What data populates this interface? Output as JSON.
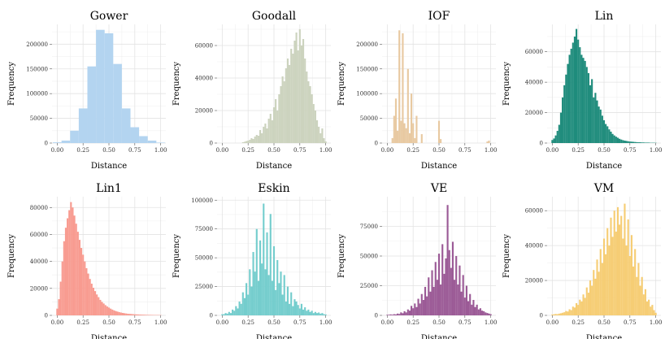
{
  "chart_data": [
    {
      "type": "bar",
      "title": "Gower",
      "xlabel": "Distance",
      "ylabel": "Frequency",
      "color": "#b3d4f0",
      "xlim": [
        -0.05,
        1.05
      ],
      "ylim": [
        0,
        240000
      ],
      "xticks": [
        0,
        0.25,
        0.5,
        0.75,
        1
      ],
      "xtick_labels": [
        "0.00",
        "0.25",
        "0.50",
        "0.75",
        "1.00"
      ],
      "yticks": [
        0,
        50000,
        100000,
        150000,
        200000
      ],
      "ytick_labels": [
        "0",
        "50000",
        "100000",
        "150000",
        "200000"
      ],
      "bin_width": 0.0833,
      "x": [
        0,
        0.0833,
        0.1667,
        0.25,
        0.3333,
        0.4167,
        0.5,
        0.5833,
        0.6667,
        0.75,
        0.8333,
        0.9167,
        1.0
      ],
      "values": [
        1500,
        5000,
        25000,
        70000,
        155000,
        229000,
        222000,
        160000,
        70000,
        32000,
        14000,
        5000,
        1000
      ]
    },
    {
      "type": "bar",
      "title": "Goodall",
      "xlabel": "Distance",
      "ylabel": "Frequency",
      "color": "#ccd3be",
      "xlim": [
        -0.05,
        1.05
      ],
      "ylim": [
        0,
        73000
      ],
      "xticks": [
        0,
        0.25,
        0.5,
        0.75,
        1
      ],
      "xtick_labels": [
        "0.00",
        "0.25",
        "0.50",
        "0.75",
        "1.00"
      ],
      "yticks": [
        0,
        20000,
        40000,
        60000
      ],
      "ytick_labels": [
        "0",
        "20000",
        "40000",
        "60000"
      ],
      "bin_width": 0.0167,
      "x": [
        0.2,
        0.2167,
        0.2333,
        0.25,
        0.2667,
        0.2833,
        0.3,
        0.3167,
        0.3333,
        0.35,
        0.3667,
        0.3833,
        0.4,
        0.4167,
        0.4333,
        0.45,
        0.4667,
        0.4833,
        0.5,
        0.5167,
        0.5333,
        0.55,
        0.5667,
        0.5833,
        0.6,
        0.6167,
        0.6333,
        0.65,
        0.6667,
        0.6833,
        0.7,
        0.7167,
        0.7333,
        0.75,
        0.7667,
        0.7833,
        0.8,
        0.8167,
        0.8333,
        0.85,
        0.8667,
        0.8833,
        0.9,
        0.9167,
        0.9333,
        0.95,
        0.9667,
        0.9833,
        1.0
      ],
      "values": [
        500,
        800,
        1200,
        1500,
        2000,
        3000,
        2500,
        4000,
        5000,
        4500,
        8000,
        6000,
        10000,
        12000,
        9000,
        15000,
        18000,
        14000,
        22000,
        27000,
        20000,
        30000,
        35000,
        41000,
        38000,
        46000,
        52000,
        48000,
        58000,
        55000,
        63000,
        68000,
        57000,
        70000,
        60000,
        64000,
        52000,
        44000,
        38000,
        35000,
        30000,
        24000,
        20000,
        14000,
        10000,
        6000,
        9000,
        3000,
        1000
      ]
    },
    {
      "type": "bar",
      "title": "IOF",
      "xlabel": "Distance",
      "ylabel": "Frequency",
      "color": "#e8c9a1",
      "xlim": [
        -0.05,
        1.05
      ],
      "ylim": [
        0,
        240000
      ],
      "xticks": [
        0,
        0.25,
        0.5,
        0.75,
        1
      ],
      "xtick_labels": [
        "0.00",
        "0.25",
        "0.50",
        "0.75",
        "1.00"
      ],
      "yticks": [
        0,
        50000,
        100000,
        150000,
        200000
      ],
      "ytick_labels": [
        "0",
        "50000",
        "100000",
        "150000",
        "200000"
      ],
      "bin_width": 0.0167,
      "x": [
        0.05,
        0.0667,
        0.0833,
        0.1,
        0.1167,
        0.1333,
        0.15,
        0.1667,
        0.1833,
        0.2,
        0.2167,
        0.2333,
        0.25,
        0.2667,
        0.2833,
        0.3333,
        0.5,
        0.5167,
        0.9667,
        0.9833
      ],
      "values": [
        10000,
        55000,
        90000,
        25000,
        228000,
        45000,
        222000,
        40000,
        30000,
        150000,
        20000,
        100000,
        40000,
        10000,
        55000,
        18000,
        45000,
        8000,
        3000,
        5000
      ]
    },
    {
      "type": "bar",
      "title": "Lin",
      "xlabel": "Distance",
      "ylabel": "Frequency",
      "color": "#1f8c7c",
      "xlim": [
        -0.05,
        1.05
      ],
      "ylim": [
        0,
        78000
      ],
      "xticks": [
        0,
        0.25,
        0.5,
        0.75,
        1
      ],
      "xtick_labels": [
        "0.00",
        "0.25",
        "0.50",
        "0.75",
        "1.00"
      ],
      "yticks": [
        0,
        20000,
        40000,
        60000
      ],
      "ytick_labels": [
        "0",
        "20000",
        "40000",
        "60000"
      ],
      "bin_width": 0.0167,
      "x": [
        0.0,
        0.0167,
        0.0333,
        0.05,
        0.0667,
        0.0833,
        0.1,
        0.1167,
        0.1333,
        0.15,
        0.1667,
        0.1833,
        0.2,
        0.2167,
        0.2333,
        0.25,
        0.2667,
        0.2833,
        0.3,
        0.3167,
        0.3333,
        0.35,
        0.3667,
        0.3833,
        0.4,
        0.4167,
        0.4333,
        0.45,
        0.4667,
        0.4833,
        0.5,
        0.5167,
        0.5333,
        0.55,
        0.5667,
        0.5833,
        0.6,
        0.6167,
        0.6333,
        0.65,
        0.6667,
        0.6833,
        0.7,
        0.7167,
        0.7333,
        0.75,
        0.7667,
        0.7833,
        0.8,
        0.8167,
        0.8333,
        0.85,
        0.8667,
        0.8833,
        0.9,
        0.9167,
        0.9333,
        0.95,
        0.9667,
        0.9833,
        1.0
      ],
      "values": [
        2000,
        3000,
        5000,
        8000,
        12000,
        20000,
        30000,
        38000,
        45000,
        52000,
        58000,
        62000,
        66000,
        70000,
        75000,
        68000,
        63000,
        58000,
        56000,
        54000,
        50000,
        46000,
        38000,
        42000,
        30000,
        33000,
        28000,
        24000,
        22000,
        18000,
        15000,
        12500,
        11000,
        9000,
        7500,
        6000,
        5000,
        4200,
        3500,
        2800,
        2300,
        1900,
        1600,
        1400,
        1200,
        1000,
        900,
        800,
        700,
        600,
        500,
        500,
        400,
        400,
        300,
        300,
        300,
        200,
        200,
        200,
        150
      ]
    },
    {
      "type": "bar",
      "title": "Lin1",
      "xlabel": "Distance",
      "ylabel": "Frequency",
      "color": "#f89b90",
      "xlim": [
        -0.05,
        1.05
      ],
      "ylim": [
        0,
        88000
      ],
      "xticks": [
        0,
        0.25,
        0.5,
        0.75,
        1
      ],
      "xtick_labels": [
        "0.00",
        "0.25",
        "0.50",
        "0.75",
        "1.00"
      ],
      "yticks": [
        0,
        20000,
        40000,
        60000,
        80000
      ],
      "ytick_labels": [
        "0",
        "20000",
        "40000",
        "60000",
        "80000"
      ],
      "bin_width": 0.0167,
      "x": [
        0.0,
        0.0167,
        0.0333,
        0.05,
        0.0667,
        0.0833,
        0.1,
        0.1167,
        0.1333,
        0.15,
        0.1667,
        0.1833,
        0.2,
        0.2167,
        0.2333,
        0.25,
        0.2667,
        0.2833,
        0.3,
        0.3167,
        0.3333,
        0.35,
        0.3667,
        0.3833,
        0.4,
        0.4167,
        0.4333,
        0.45,
        0.4667,
        0.4833,
        0.5,
        0.5167,
        0.5333,
        0.55,
        0.5667,
        0.5833,
        0.6,
        0.6167,
        0.6333,
        0.65,
        0.6667,
        0.6833,
        0.7,
        0.7167,
        0.7333,
        0.75,
        0.7667,
        0.7833,
        0.8,
        0.8167,
        0.8333,
        0.85,
        0.8667,
        0.8833,
        0.9,
        0.9167,
        0.9333,
        0.95,
        0.9667,
        0.9833,
        1.0
      ],
      "values": [
        5000,
        12000,
        25000,
        40000,
        55000,
        65000,
        72000,
        78000,
        84000,
        80000,
        74000,
        68000,
        62000,
        56000,
        50000,
        45000,
        40000,
        35000,
        31000,
        27000,
        23500,
        20500,
        18000,
        15500,
        13500,
        11500,
        10000,
        8800,
        7600,
        6600,
        5800,
        5000,
        4300,
        3700,
        3200,
        2800,
        2400,
        2100,
        1800,
        1600,
        1400,
        1200,
        1100,
        1000,
        900,
        800,
        700,
        650,
        600,
        550,
        500,
        450,
        400,
        380,
        350,
        320,
        300,
        280,
        260,
        240,
        220
      ]
    },
    {
      "type": "bar",
      "title": "Eskin",
      "xlabel": "Distance",
      "ylabel": "Frequency",
      "color": "#74cdcd",
      "xlim": [
        -0.05,
        1.05
      ],
      "ylim": [
        0,
        103000
      ],
      "xticks": [
        0,
        0.25,
        0.5,
        0.75,
        1
      ],
      "xtick_labels": [
        "0.00",
        "0.25",
        "0.50",
        "0.75",
        "1.00"
      ],
      "yticks": [
        0,
        25000,
        50000,
        75000,
        100000
      ],
      "ytick_labels": [
        "0",
        "25000",
        "50000",
        "75000",
        "100000"
      ],
      "bin_width": 0.0167,
      "x": [
        0.0,
        0.0167,
        0.0333,
        0.05,
        0.0667,
        0.0833,
        0.1,
        0.1167,
        0.1333,
        0.15,
        0.1667,
        0.1833,
        0.2,
        0.2167,
        0.2333,
        0.25,
        0.2667,
        0.2833,
        0.3,
        0.3167,
        0.3333,
        0.35,
        0.3667,
        0.3833,
        0.4,
        0.4167,
        0.4333,
        0.45,
        0.4667,
        0.4833,
        0.5,
        0.5167,
        0.5333,
        0.55,
        0.5667,
        0.5833,
        0.6,
        0.6167,
        0.6333,
        0.65,
        0.6667,
        0.6833,
        0.7,
        0.7167,
        0.7333,
        0.75,
        0.7667,
        0.7833,
        0.8,
        0.8167,
        0.8333,
        0.85,
        0.8667,
        0.8833,
        0.9,
        0.9167,
        0.9333,
        0.95,
        0.9667,
        0.9833,
        1.0
      ],
      "values": [
        1000,
        1000,
        2000,
        1500,
        3000,
        2000,
        5000,
        4000,
        8000,
        6000,
        12000,
        10000,
        20000,
        15000,
        28000,
        18000,
        40000,
        25000,
        55000,
        38000,
        75000,
        30000,
        65000,
        45000,
        97000,
        40000,
        72000,
        35000,
        88000,
        30000,
        60000,
        22000,
        48000,
        28000,
        38000,
        18000,
        35000,
        12000,
        25000,
        10000,
        20000,
        8000,
        14000,
        12000,
        9000,
        6000,
        10000,
        5000,
        7000,
        4000,
        5000,
        3000,
        4000,
        2000,
        3000,
        2000,
        2500,
        1500,
        2000,
        1000,
        800
      ]
    },
    {
      "type": "bar",
      "title": "VE",
      "xlabel": "Distance",
      "ylabel": "Frequency",
      "color": "#9b5a96",
      "xlim": [
        -0.05,
        1.05
      ],
      "ylim": [
        0,
        100000
      ],
      "xticks": [
        0,
        0.25,
        0.5,
        0.75,
        1
      ],
      "xtick_labels": [
        "0.00",
        "0.25",
        "0.50",
        "0.75",
        "1.00"
      ],
      "yticks": [
        0,
        25000,
        50000,
        75000
      ],
      "ytick_labels": [
        "0",
        "25000",
        "50000",
        "75000"
      ],
      "bin_width": 0.0167,
      "x": [
        0.0,
        0.0167,
        0.0333,
        0.05,
        0.0667,
        0.0833,
        0.1,
        0.1167,
        0.1333,
        0.15,
        0.1667,
        0.1833,
        0.2,
        0.2167,
        0.2333,
        0.25,
        0.2667,
        0.2833,
        0.3,
        0.3167,
        0.3333,
        0.35,
        0.3667,
        0.3833,
        0.4,
        0.4167,
        0.4333,
        0.45,
        0.4667,
        0.4833,
        0.5,
        0.5167,
        0.5333,
        0.55,
        0.5667,
        0.5833,
        0.6,
        0.6167,
        0.6333,
        0.65,
        0.6667,
        0.6833,
        0.7,
        0.7167,
        0.7333,
        0.75,
        0.7667,
        0.7833,
        0.8,
        0.8167,
        0.8333,
        0.85,
        0.8667,
        0.8833,
        0.9,
        0.9167,
        0.9333,
        0.95,
        0.9667,
        0.9833,
        1.0
      ],
      "values": [
        500,
        500,
        800,
        600,
        1000,
        800,
        1500,
        1200,
        2500,
        1800,
        3500,
        2500,
        5000,
        4000,
        8000,
        6000,
        10000,
        7000,
        14000,
        10000,
        18000,
        13000,
        24000,
        16000,
        32000,
        20000,
        38000,
        24000,
        45000,
        30000,
        52000,
        26000,
        60000,
        35000,
        48000,
        93000,
        55000,
        40000,
        62000,
        30000,
        50000,
        26000,
        42000,
        20000,
        34000,
        15000,
        25000,
        12000,
        18000,
        9000,
        13000,
        7000,
        9000,
        5000,
        6000,
        4000,
        3500,
        2500,
        2000,
        1500,
        1000
      ]
    },
    {
      "type": "bar",
      "title": "VM",
      "xlabel": "Distance",
      "ylabel": "Frequency",
      "color": "#f6cd74",
      "xlim": [
        -0.05,
        1.05
      ],
      "ylim": [
        0,
        68000
      ],
      "xticks": [
        0,
        0.25,
        0.5,
        0.75,
        1
      ],
      "xtick_labels": [
        "0.00",
        "0.25",
        "0.50",
        "0.75",
        "1.00"
      ],
      "yticks": [
        0,
        20000,
        40000,
        60000
      ],
      "ytick_labels": [
        "0",
        "20000",
        "40000",
        "60000"
      ],
      "bin_width": 0.0167,
      "x": [
        0.0,
        0.0167,
        0.0333,
        0.05,
        0.0667,
        0.0833,
        0.1,
        0.1167,
        0.1333,
        0.15,
        0.1667,
        0.1833,
        0.2,
        0.2167,
        0.2333,
        0.25,
        0.2667,
        0.2833,
        0.3,
        0.3167,
        0.3333,
        0.35,
        0.3667,
        0.3833,
        0.4,
        0.4167,
        0.4333,
        0.45,
        0.4667,
        0.4833,
        0.5,
        0.5167,
        0.5333,
        0.55,
        0.5667,
        0.5833,
        0.6,
        0.6167,
        0.6333,
        0.65,
        0.6667,
        0.6833,
        0.7,
        0.7167,
        0.7333,
        0.75,
        0.7667,
        0.7833,
        0.8,
        0.8167,
        0.8333,
        0.85,
        0.8667,
        0.8833,
        0.9,
        0.9167,
        0.9333,
        0.95,
        0.9667,
        0.9833,
        1.0
      ],
      "values": [
        500,
        600,
        800,
        700,
        1000,
        1200,
        1500,
        1800,
        2500,
        2200,
        3500,
        3000,
        5000,
        4500,
        7000,
        6000,
        9000,
        8000,
        12000,
        10000,
        16000,
        13000,
        20000,
        17000,
        26000,
        21000,
        32000,
        25000,
        38000,
        30000,
        44000,
        35000,
        50000,
        40000,
        56000,
        45000,
        60000,
        48000,
        62000,
        52000,
        57000,
        44000,
        64000,
        40000,
        55000,
        34000,
        46000,
        28000,
        38000,
        22000,
        30000,
        17000,
        22000,
        12000,
        15000,
        8000,
        9000,
        5000,
        6000,
        3000,
        1500
      ]
    }
  ]
}
